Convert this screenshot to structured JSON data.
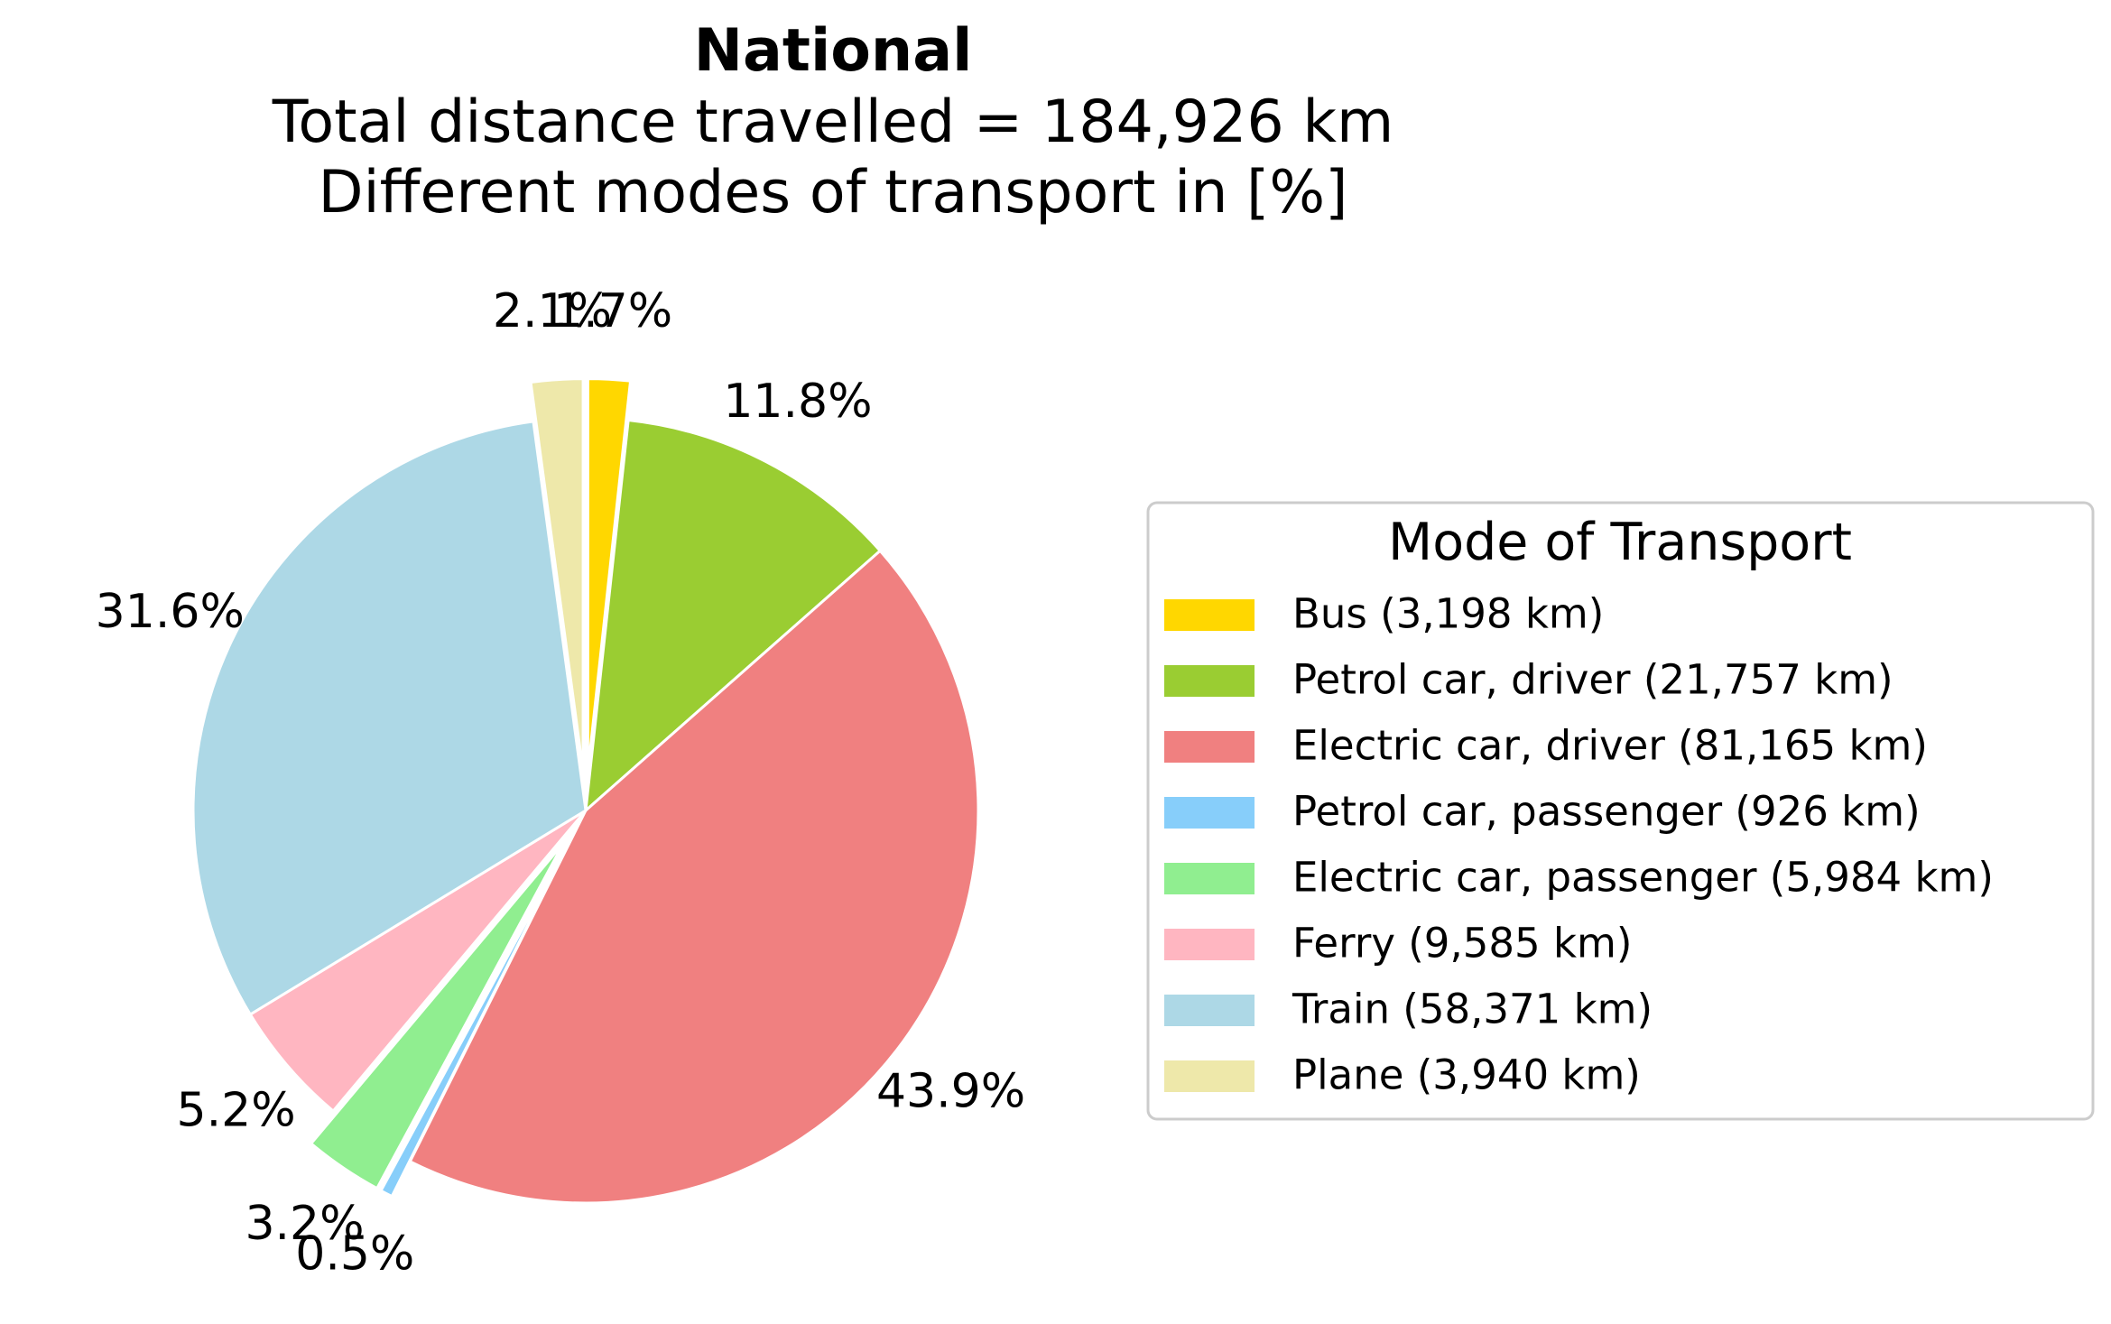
{
  "chart_data": {
    "type": "pie",
    "title": "National",
    "subtitle_lines": [
      "Total distance travelled = 184,926 km",
      "Different modes of transport in [%]"
    ],
    "unit": "km",
    "categories": [
      "Bus (3,198 km)",
      "Petrol car, driver (21,757 km)",
      "Electric car, driver (81,165 km)",
      "Petrol car, passenger (926 km)",
      "Electric car, passenger (5,984 km)",
      "Ferry (9,585 km)",
      "Train (58,371 km)",
      "Plane (3,940 km)"
    ],
    "values": [
      3198,
      21757,
      81165,
      926,
      5984,
      9585,
      58371,
      3940
    ],
    "percent_labels": [
      "1.7%",
      "11.8%",
      "43.9%",
      "0.5%",
      "3.2%",
      "5.2%",
      "31.6%",
      "2.1%"
    ],
    "exploded": [
      true,
      false,
      false,
      true,
      true,
      false,
      false,
      true
    ],
    "colors": [
      "#FFD700",
      "#9ACD32",
      "#F08080",
      "#87CEFA",
      "#90EE90",
      "#FFB6C1",
      "#ADD8E6",
      "#EEE8AA"
    ],
    "start_angle_deg": 90,
    "direction": "clockwise",
    "legend": {
      "title": "Mode of Transport",
      "placement": "right"
    }
  }
}
